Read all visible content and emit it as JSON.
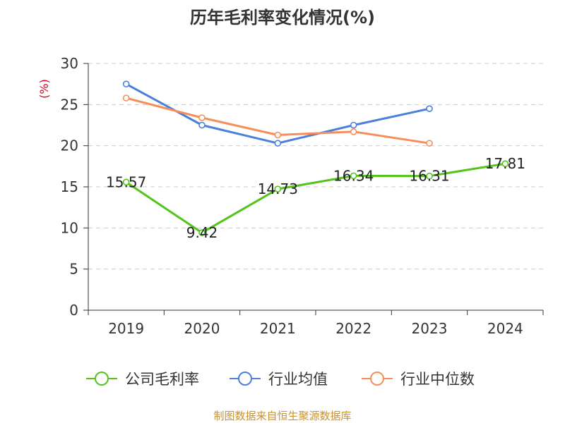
{
  "chart_data": {
    "type": "line",
    "title": "历年毛利率变化情况(%)",
    "ylabel": "(%)",
    "categories": [
      "2019",
      "2020",
      "2021",
      "2022",
      "2023",
      "2024"
    ],
    "ylim": [
      0,
      30
    ],
    "yticks": [
      "0",
      "5",
      "10",
      "15",
      "20",
      "25",
      "30"
    ],
    "grid": true,
    "legend_position": "bottom",
    "series": [
      {
        "name": "公司毛利率",
        "color": "#52c41a",
        "values": [
          15.57,
          9.42,
          14.73,
          16.34,
          16.31,
          17.81
        ],
        "labels": [
          "15.57",
          "9.42",
          "14.73",
          "16.34",
          "16.31",
          "17.81"
        ]
      },
      {
        "name": "行业均值",
        "color": "#4a7fdc",
        "values": [
          27.5,
          22.5,
          20.3,
          22.5,
          24.5,
          null
        ]
      },
      {
        "name": "行业中位数",
        "color": "#f78e5a",
        "values": [
          25.8,
          23.4,
          21.3,
          21.7,
          20.3,
          null
        ]
      }
    ],
    "source": "制图数据来自恒生聚源数据库"
  }
}
